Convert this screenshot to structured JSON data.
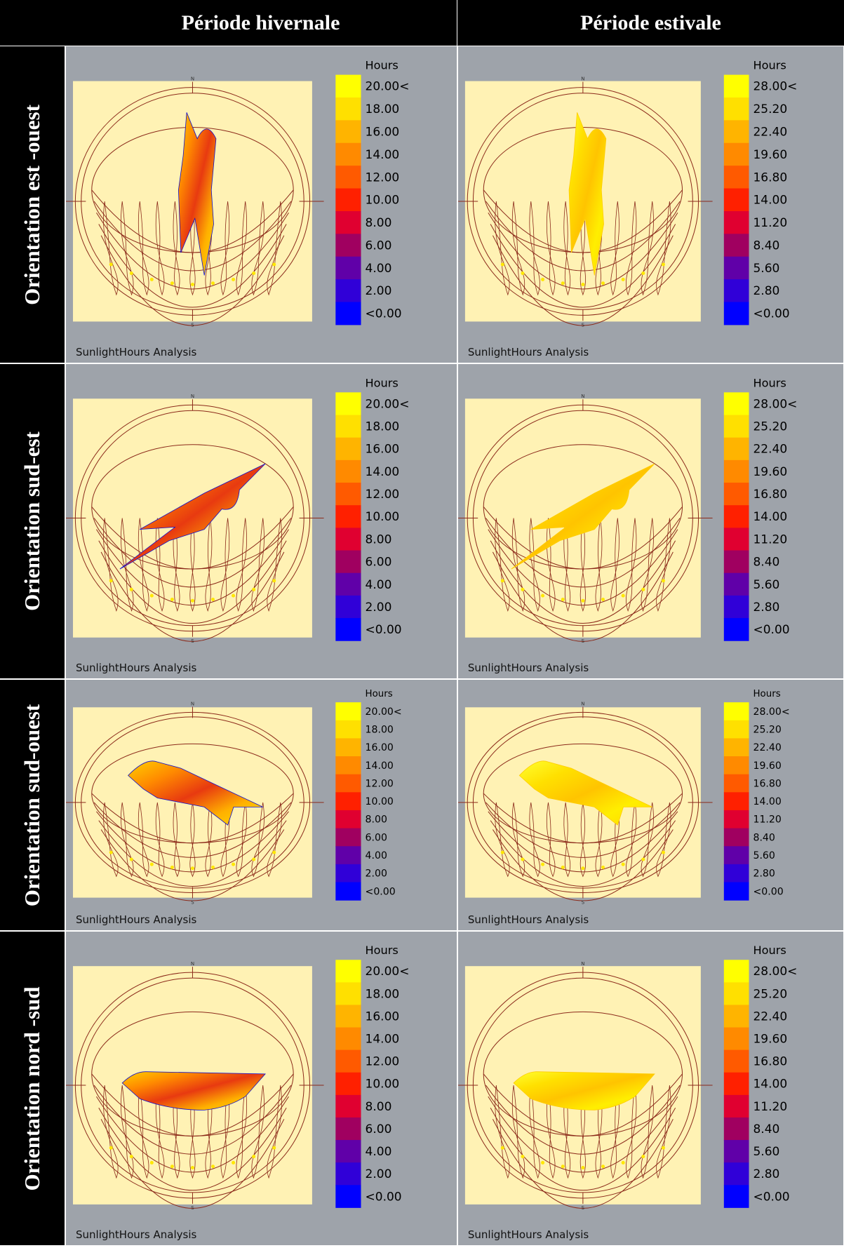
{
  "header": {
    "columns": [
      "Période hivernale",
      "Période estivale"
    ]
  },
  "compass": {
    "north": "N",
    "south": "S"
  },
  "rows": [
    {
      "label": "Orientation est -ouest",
      "panels": [
        {
          "legend_title": "Hours",
          "legend_labels": [
            "20.00<",
            "18.00",
            "16.00",
            "14.00",
            "12.00",
            "10.00",
            "8.00",
            "6.00",
            "4.00",
            "2.00",
            "<0.00"
          ],
          "caption": "SunlightHours Analysis"
        },
        {
          "legend_title": "Hours",
          "legend_labels": [
            "28.00<",
            "25.20",
            "22.40",
            "19.60",
            "16.80",
            "14.00",
            "11.20",
            "8.40",
            "5.60",
            "2.80",
            "<0.00"
          ],
          "caption": "SunlightHours Analysis"
        }
      ]
    },
    {
      "label": "Orientation sud-est",
      "panels": [
        {
          "legend_title": "Hours",
          "legend_labels": [
            "20.00<",
            "18.00",
            "16.00",
            "14.00",
            "12.00",
            "10.00",
            "8.00",
            "6.00",
            "4.00",
            "2.00",
            "<0.00"
          ],
          "caption": "SunlightHours Analysis"
        },
        {
          "legend_title": "Hours",
          "legend_labels": [
            "28.00<",
            "25.20",
            "22.40",
            "19.60",
            "16.80",
            "14.00",
            "11.20",
            "8.40",
            "5.60",
            "2.80",
            "<0.00"
          ],
          "caption": "SunlightHours Analysis"
        }
      ]
    },
    {
      "label": "Orientation sud-ouest",
      "panels": [
        {
          "legend_title": "Hours",
          "legend_labels": [
            "20.00<",
            "18.00",
            "16.00",
            "14.00",
            "12.00",
            "10.00",
            "8.00",
            "6.00",
            "4.00",
            "2.00",
            "<0.00"
          ],
          "caption": "SunlightHours Analysis"
        },
        {
          "legend_title": "Hours",
          "legend_labels": [
            "28.00<",
            "25.20",
            "22.40",
            "19.60",
            "16.80",
            "14.00",
            "11.20",
            "8.40",
            "5.60",
            "2.80",
            "<0.00"
          ],
          "caption": "SunlightHours Analysis"
        }
      ]
    },
    {
      "label": "Orientation nord -sud",
      "panels": [
        {
          "legend_title": "Hours",
          "legend_labels": [
            "20.00<",
            "18.00",
            "16.00",
            "14.00",
            "12.00",
            "10.00",
            "8.00",
            "6.00",
            "4.00",
            "2.00",
            "<0.00"
          ],
          "caption": "SunlightHours Analysis"
        },
        {
          "legend_title": "Hours",
          "legend_labels": [
            "28.00<",
            "25.20",
            "22.40",
            "19.60",
            "16.80",
            "14.00",
            "11.20",
            "8.40",
            "5.60",
            "2.80",
            "<0.00"
          ],
          "caption": "SunlightHours Analysis"
        }
      ]
    }
  ]
}
